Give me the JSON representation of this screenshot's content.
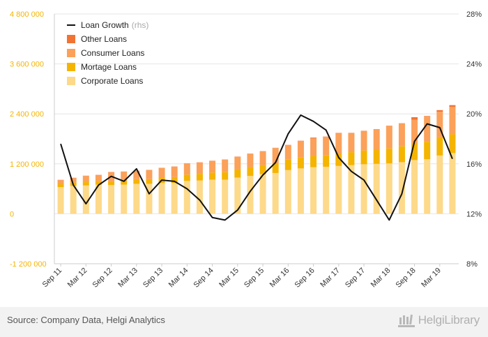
{
  "chart_data": {
    "type": "bar",
    "stacked": true,
    "categories": [
      "Sep 11",
      "Dec 11",
      "Mar 12",
      "Jun 12",
      "Sep 12",
      "Dec 12",
      "Mar 13",
      "Jun 13",
      "Sep 13",
      "Dec 13",
      "Mar 14",
      "Jun 14",
      "Sep 14",
      "Dec 14",
      "Mar 15",
      "Jun 15",
      "Sep 15",
      "Dec 15",
      "Mar 16",
      "Jun 16",
      "Sep 16",
      "Dec 16",
      "Mar 17",
      "Jun 17",
      "Sep 17",
      "Dec 17",
      "Mar 18",
      "Jun 18",
      "Sep 18",
      "Dec 18",
      "Mar 19",
      "Jun 19"
    ],
    "x_tick_labels": [
      "Sep 11",
      "Mar 12",
      "Sep 12",
      "Mar 13",
      "Sep 13",
      "Mar 14",
      "Sep 14",
      "Mar 15",
      "Sep 15",
      "Mar 16",
      "Sep 16",
      "Mar 17",
      "Sep 17",
      "Mar 18",
      "Sep 18",
      "Mar 19"
    ],
    "series": [
      {
        "name": "Corporate Loans",
        "color": "#fdd98a",
        "values": [
          640000,
          670000,
          680000,
          700000,
          690000,
          700000,
          720000,
          720000,
          740000,
          740000,
          790000,
          800000,
          820000,
          820000,
          870000,
          910000,
          950000,
          980000,
          1050000,
          1090000,
          1120000,
          1130000,
          1150000,
          1170000,
          1190000,
          1200000,
          1210000,
          1240000,
          1290000,
          1310000,
          1400000,
          1460000
        ]
      },
      {
        "name": "Mortage Loans",
        "color": "#f5b400",
        "values": [
          70000,
          80000,
          80000,
          90000,
          90000,
          100000,
          110000,
          110000,
          130000,
          140000,
          150000,
          160000,
          170000,
          180000,
          200000,
          210000,
          220000,
          230000,
          250000,
          260000,
          270000,
          280000,
          290000,
          310000,
          330000,
          340000,
          360000,
          380000,
          410000,
          420000,
          440000,
          450000
        ]
      },
      {
        "name": "Consumer Loans",
        "color": "#fba15a",
        "values": [
          100000,
          110000,
          150000,
          140000,
          220000,
          210000,
          200000,
          220000,
          230000,
          250000,
          270000,
          270000,
          280000,
          300000,
          300000,
          320000,
          330000,
          370000,
          350000,
          400000,
          420000,
          440000,
          500000,
          460000,
          470000,
          490000,
          540000,
          550000,
          560000,
          610000,
          610000,
          660000
        ]
      },
      {
        "name": "Other Loans",
        "color": "#f27333",
        "values": [
          5000,
          5000,
          5000,
          5000,
          5000,
          5000,
          5000,
          5000,
          5000,
          5000,
          5000,
          5000,
          5000,
          5000,
          5000,
          5000,
          5000,
          5000,
          5000,
          5000,
          20000,
          5000,
          5000,
          5000,
          5000,
          5000,
          5000,
          5000,
          60000,
          10000,
          40000,
          40000
        ]
      },
      {
        "name": "Loan Growth",
        "axis": "rhs",
        "type": "line",
        "color": "#111111",
        "values": [
          17.6,
          14.3,
          12.8,
          14.3,
          15.0,
          14.6,
          15.6,
          13.6,
          14.7,
          14.6,
          14.0,
          13.1,
          11.7,
          11.5,
          12.3,
          13.8,
          15.1,
          16.1,
          18.4,
          19.9,
          19.4,
          18.7,
          16.5,
          15.4,
          14.7,
          13.1,
          11.5,
          13.6,
          17.8,
          19.2,
          18.9,
          16.4
        ]
      }
    ],
    "y_left": {
      "min": -1200000,
      "max": 4800000,
      "ticks": [
        -1200000,
        0,
        1200000,
        2400000,
        3600000,
        4800000
      ],
      "tick_labels": [
        "-1 200 000",
        "0",
        "1 200 000",
        "2 400 000",
        "3 600 000",
        "4 800 000"
      ]
    },
    "y_right": {
      "min": 8,
      "max": 28,
      "ticks": [
        8,
        12,
        16,
        20,
        24,
        28
      ],
      "tick_labels": [
        "8%",
        "12%",
        "16%",
        "20%",
        "24%",
        "28%"
      ]
    },
    "legend": {
      "placement": "top-left",
      "items": [
        {
          "label": "Loan Growth",
          "suffix": "(rhs)",
          "symbol": "line",
          "color": "#111111"
        },
        {
          "label": "Other Loans",
          "symbol": "square",
          "color": "#f27333"
        },
        {
          "label": "Consumer Loans",
          "symbol": "square",
          "color": "#fba15a"
        },
        {
          "label": "Mortage Loans",
          "symbol": "square",
          "color": "#f5b400"
        },
        {
          "label": "Corporate Loans",
          "symbol": "square",
          "color": "#fdd98a"
        }
      ]
    },
    "grid": true,
    "left_tick_color": "#f5b400"
  },
  "footer": {
    "source": "Source: Company Data, Helgi Analytics",
    "brand": "HelgiLibrary"
  }
}
